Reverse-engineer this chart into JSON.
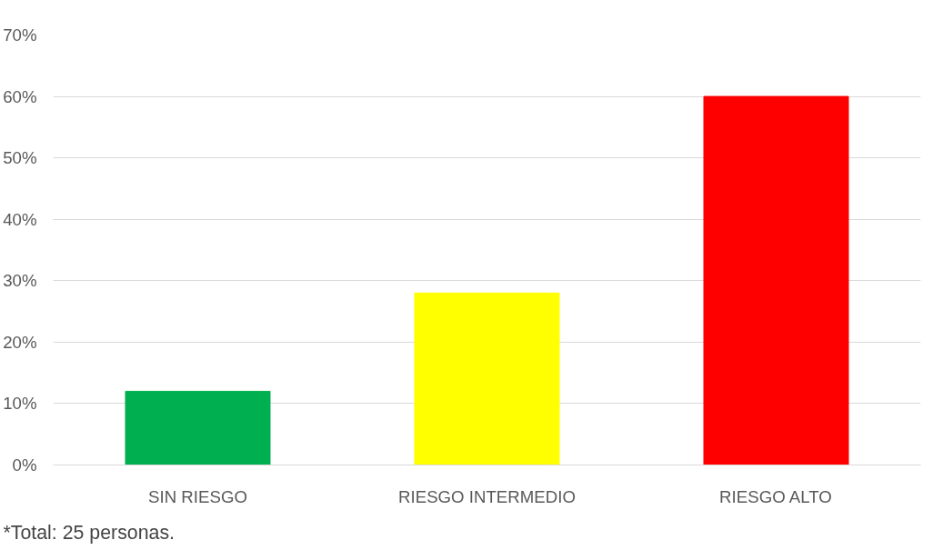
{
  "chart_data": {
    "type": "bar",
    "categories": [
      "SIN RIESGO",
      "RIESGO INTERMEDIO",
      "RIESGO ALTO"
    ],
    "values": [
      12,
      28,
      60
    ],
    "colors": [
      "#00b050",
      "#ffff00",
      "#ff0000"
    ],
    "ylim": [
      0,
      70
    ],
    "yticks": [
      {
        "value": 0,
        "label": "0%"
      },
      {
        "value": 10,
        "label": "10%"
      },
      {
        "value": 20,
        "label": "20%"
      },
      {
        "value": 30,
        "label": "30%"
      },
      {
        "value": 40,
        "label": "40%"
      },
      {
        "value": 50,
        "label": "50%"
      },
      {
        "value": 60,
        "label": "60%"
      },
      {
        "value": 70,
        "label": "70%"
      }
    ],
    "grid": "y",
    "annotations": [
      "*Total: 25 personas."
    ]
  }
}
